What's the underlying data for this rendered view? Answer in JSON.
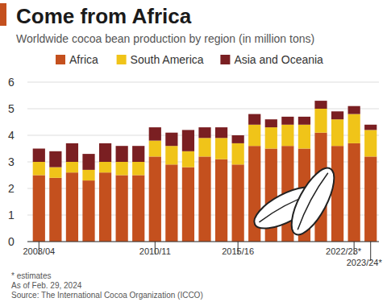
{
  "chart_data": {
    "type": "bar",
    "title": "Come from Africa",
    "subtitle": "Worldwide cocoa bean production by region (in million tons)",
    "categories": [
      "2003/04",
      null,
      null,
      null,
      null,
      null,
      null,
      "2010/11",
      null,
      null,
      null,
      null,
      "2015/16",
      null,
      null,
      null,
      null,
      null,
      null,
      "2022/23*",
      "2023/24*"
    ],
    "series": [
      {
        "name": "Africa",
        "color": "#c4501e",
        "values": [
          2.5,
          2.4,
          2.6,
          2.3,
          2.6,
          2.5,
          2.5,
          3.2,
          2.9,
          2.8,
          3.2,
          3.1,
          2.9,
          3.6,
          3.5,
          3.6,
          3.5,
          4.1,
          3.6,
          3.7,
          3.2
        ]
      },
      {
        "name": "South America",
        "color": "#f0c419",
        "values": [
          0.5,
          0.4,
          0.4,
          0.4,
          0.4,
          0.5,
          0.5,
          0.6,
          0.7,
          0.6,
          0.7,
          0.8,
          0.8,
          0.8,
          0.8,
          0.8,
          0.9,
          0.9,
          1.0,
          1.1,
          1.0
        ]
      },
      {
        "name": "Asia and Oceania",
        "color": "#7a1f22",
        "values": [
          0.5,
          0.6,
          0.7,
          0.6,
          0.7,
          0.6,
          0.6,
          0.5,
          0.5,
          0.8,
          0.4,
          0.4,
          0.3,
          0.4,
          0.3,
          0.3,
          0.3,
          0.3,
          0.3,
          0.3,
          0.2
        ]
      }
    ],
    "stacked": true,
    "ylim": [
      0,
      6
    ],
    "yticks": [
      0,
      1,
      2,
      3,
      4,
      5,
      6
    ],
    "grid": true,
    "legend": "top",
    "annotations": [
      "* estimates",
      "As of Feb. 29, 2024",
      "Source: The International Cocoa Organization (ICCO)"
    ]
  }
}
